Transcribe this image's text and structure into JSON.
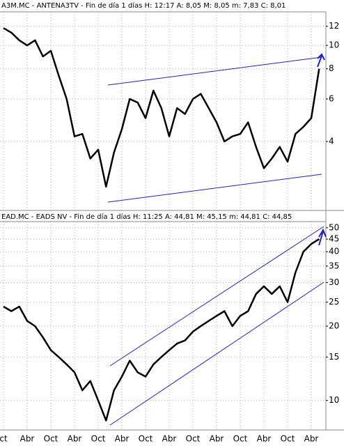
{
  "chart_data": [
    {
      "type": "line",
      "title": "A3M.MC - ANTENA3TV - Fin de día 1 días H: 12:17 A: 8,05 M: 8,05 m: 7,83 C: 8,01",
      "log_scale": true,
      "grid": true,
      "color": "#000000",
      "ylim": [
        2.1,
        13.5
      ],
      "yticks": [
        4,
        6,
        8,
        10,
        12
      ],
      "values": [
        11.8,
        11.3,
        10.5,
        10,
        10.5,
        9,
        9.5,
        7.5,
        6,
        4.2,
        4.3,
        3.4,
        3.7,
        2.6,
        3.6,
        4.5,
        6,
        5.8,
        5,
        6.5,
        5.5,
        4.2,
        5.5,
        5.2,
        6,
        6.3,
        5.5,
        4.8,
        4,
        4.2,
        4.3,
        4.8,
        3.8,
        3.1,
        3.4,
        3.8,
        3.3,
        4.3,
        4.6,
        5,
        8
      ]
    },
    {
      "type": "line",
      "title": "EAD.MC - EADS NV - Fin de día 1 días H: 11:25 A: 44,81 M: 45,15 m: 44,81 C: 44,85",
      "log_scale": true,
      "grid": true,
      "color": "#000000",
      "ylim": [
        7.7,
        51.6
      ],
      "yticks": [
        10,
        15,
        20,
        25,
        30,
        35,
        40,
        45,
        50
      ],
      "categories": [
        "ct",
        null,
        null,
        "Abr",
        null,
        null,
        "Oct",
        null,
        null,
        "Abr",
        null,
        null,
        "Oct",
        null,
        null,
        "Abr",
        null,
        null,
        "Oct",
        null,
        null,
        "Abr",
        null,
        null,
        "Oct",
        null,
        null,
        "Abr",
        null,
        null,
        "Oct",
        null,
        null,
        "Abr",
        null,
        null,
        "Oct",
        null,
        null,
        "Abr",
        null
      ],
      "values": [
        24,
        23,
        24,
        21,
        20,
        18,
        16,
        15,
        14,
        13,
        11,
        12,
        10,
        8.3,
        11,
        12.5,
        14.5,
        13,
        12.5,
        14,
        15,
        16,
        17,
        17.5,
        19,
        20,
        21,
        22,
        23,
        20,
        22,
        23,
        27,
        29,
        27,
        29,
        25,
        33,
        40,
        43,
        45
      ]
    }
  ]
}
